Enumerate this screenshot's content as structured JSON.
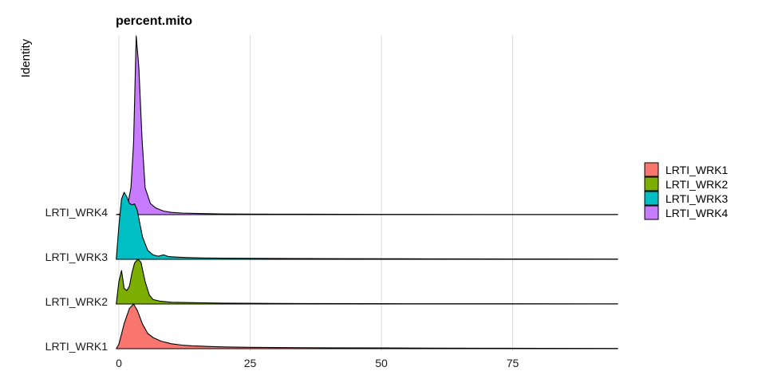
{
  "chart_data": {
    "type": "area",
    "subtype": "ridgeline",
    "title": "percent.mito",
    "xlabel": "",
    "ylabel": "Identity",
    "xlim": [
      -0.5,
      95
    ],
    "x_ticks": [
      0,
      25,
      50,
      75
    ],
    "grid": "vertical",
    "legend_position": "right",
    "categories": [
      "LRTI_WRK1",
      "LRTI_WRK2",
      "LRTI_WRK3",
      "LRTI_WRK4"
    ],
    "series": [
      {
        "name": "LRTI_WRK1",
        "color": "#F8766D",
        "x": [
          -0.5,
          0,
          1,
          2,
          2.8,
          3.5,
          4.5,
          5.5,
          6.5,
          8,
          10,
          12,
          14,
          17,
          20,
          25,
          30,
          40,
          50,
          60,
          70,
          80,
          95
        ],
        "density": [
          0,
          0.1,
          0.56,
          0.9,
          1.0,
          0.86,
          0.55,
          0.34,
          0.25,
          0.17,
          0.11,
          0.08,
          0.065,
          0.05,
          0.04,
          0.03,
          0.025,
          0.02,
          0.016,
          0.012,
          0.01,
          0.008,
          0.005
        ]
      },
      {
        "name": "LRTI_WRK2",
        "color": "#7CAE00",
        "x": [
          -0.5,
          0,
          0.5,
          1,
          1.5,
          2,
          2.5,
          3,
          3.6,
          4.2,
          5,
          5.8,
          6.5,
          8,
          10,
          14,
          20,
          30,
          50,
          70,
          95
        ],
        "density": [
          0,
          0.5,
          0.75,
          0.35,
          0.3,
          0.4,
          0.7,
          0.92,
          1.0,
          0.94,
          0.5,
          0.2,
          0.1,
          0.06,
          0.04,
          0.03,
          0.02,
          0.012,
          0.008,
          0.005,
          0.004
        ]
      },
      {
        "name": "LRTI_WRK3",
        "color": "#00BFC4",
        "x": [
          -0.5,
          0,
          0.5,
          1,
          1.5,
          2,
          2.5,
          3,
          3.5,
          4,
          4.5,
          5.5,
          6.5,
          7.5,
          8.5,
          9.5,
          11,
          13,
          16,
          20,
          30,
          40,
          60,
          80,
          95
        ],
        "density": [
          0,
          0.75,
          1.35,
          1.5,
          1.4,
          1.25,
          1.22,
          1.24,
          1.1,
          0.8,
          0.5,
          0.2,
          0.1,
          0.07,
          0.1,
          0.06,
          0.05,
          0.04,
          0.03,
          0.025,
          0.02,
          0.015,
          0.01,
          0.007,
          0.005
        ]
      },
      {
        "name": "LRTI_WRK4",
        "color": "#C77CFF",
        "x": [
          -0.5,
          0.5,
          1.5,
          2.3,
          2.8,
          3.3,
          3.8,
          4.4,
          5,
          6,
          7,
          8.5,
          10,
          12,
          15,
          20,
          30,
          50,
          70,
          95
        ],
        "density": [
          0,
          0.02,
          0.1,
          0.6,
          1.6,
          4.0,
          3.3,
          1.7,
          0.6,
          0.25,
          0.15,
          0.08,
          0.05,
          0.035,
          0.025,
          0.015,
          0.01,
          0.006,
          0.004,
          0.003
        ]
      }
    ]
  }
}
